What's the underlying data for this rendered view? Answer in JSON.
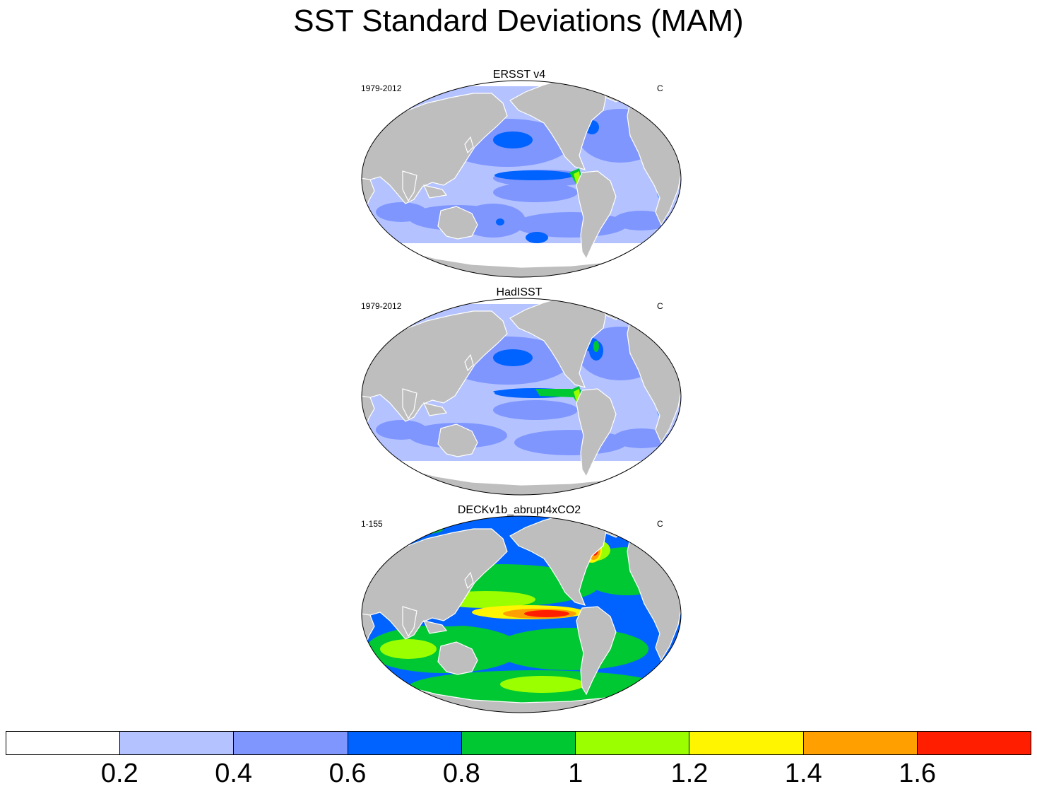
{
  "figure": {
    "title": "SST Standard Deviations (MAM)"
  },
  "panels": [
    {
      "title": "ERSST v4",
      "period": "1979-2012",
      "units": "C",
      "pattern": "obs1"
    },
    {
      "title": "HadISST",
      "period": "1979-2012",
      "units": "C",
      "pattern": "obs2"
    },
    {
      "title": "DECKv1b_abrupt4xCO2",
      "period": "1-155",
      "units": "C",
      "pattern": "model"
    }
  ],
  "colors": {
    "land": "#bebebe",
    "levels": [
      "#ffffff",
      "#b4c3ff",
      "#7f96ff",
      "#0062ff",
      "#00c832",
      "#9bff00",
      "#fff500",
      "#ffa000",
      "#ff1e00"
    ]
  },
  "colorbar": {
    "labels": [
      "0.2",
      "0.4",
      "0.6",
      "0.8",
      "1",
      "1.2",
      "1.4",
      "1.6"
    ]
  }
}
